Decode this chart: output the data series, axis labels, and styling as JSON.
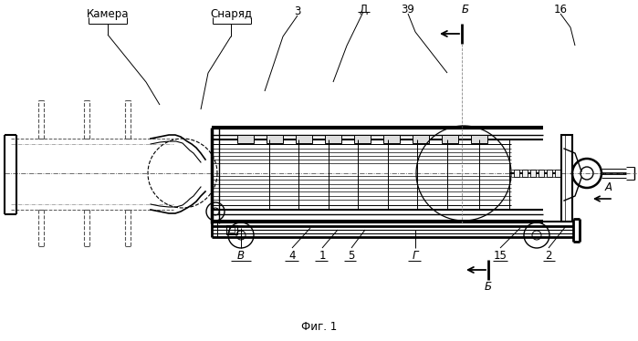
{
  "fig_label": "Фиг. 1",
  "label_camera": "Камера",
  "label_snaryd": "Снаряд",
  "label_3": "3",
  "label_D": "Д",
  "label_39": "39",
  "label_B_top": "Б",
  "label_16": "16",
  "label_A": "А",
  "label_V": "В",
  "label_4": "4",
  "label_1": "1",
  "label_5": "5",
  "label_G": "Г",
  "label_15": "15",
  "label_2": "2",
  "label_B_bot": "Б",
  "bg": "#ffffff",
  "lc": "#000000"
}
